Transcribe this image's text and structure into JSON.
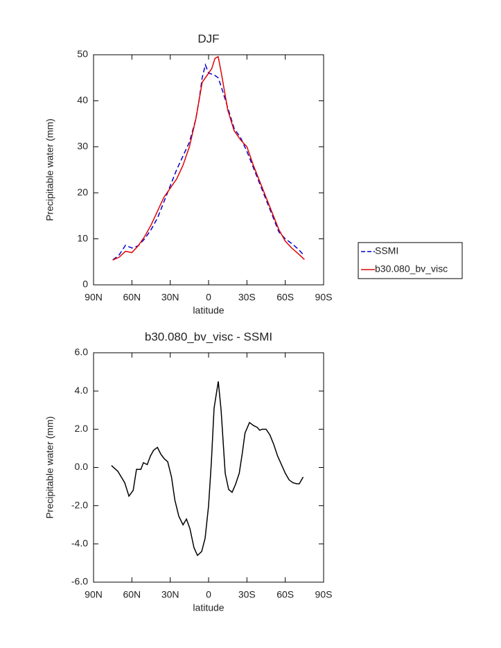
{
  "chart_data": [
    {
      "type": "line",
      "title": "DJF",
      "x_label": "latitude",
      "y_label": "Precipitable water (mm)",
      "x": [
        75,
        70,
        65,
        60,
        55,
        50,
        45,
        40,
        35,
        30,
        25,
        20,
        15,
        10,
        7.5,
        5,
        2.5,
        0,
        -2.5,
        -5,
        -7.5,
        -10,
        -15,
        -20,
        -25,
        -30,
        -35,
        -40,
        -45,
        -50,
        -55,
        -60,
        -65,
        -70,
        -75
      ],
      "series": [
        {
          "name": "SSMI",
          "color": "#0000cc",
          "linestyle": "dashed",
          "values": [
            5.4,
            6.5,
            8.6,
            8,
            8.5,
            10,
            12,
            14.5,
            18,
            21.5,
            25,
            28,
            31,
            36,
            40,
            45,
            47.8,
            46,
            45.8,
            45.5,
            45,
            43,
            38.5,
            34,
            32,
            29,
            25.5,
            22,
            18.5,
            15,
            11.5,
            10,
            9,
            7.8,
            6.3
          ]
        },
        {
          "name": "b30.080_bv_visc",
          "color": "#e00000",
          "linestyle": "solid",
          "values": [
            5.4,
            6,
            7.3,
            7,
            8.5,
            10.5,
            13,
            16,
            19,
            21,
            23,
            26,
            30,
            36,
            40,
            44,
            45,
            46,
            47,
            49.2,
            49.6,
            46,
            38,
            33.5,
            31.5,
            30,
            26,
            22.5,
            19,
            15.5,
            12,
            9.5,
            8,
            6.8,
            5.5
          ]
        }
      ],
      "xlim": [
        90,
        -90
      ],
      "xticks": [
        {
          "value": 90,
          "label": "90N"
        },
        {
          "value": 60,
          "label": "60N"
        },
        {
          "value": 30,
          "label": "30N"
        },
        0,
        {
          "value": -30,
          "label": "30S"
        },
        {
          "value": -60,
          "label": "60S"
        },
        {
          "value": -90,
          "label": "90S"
        }
      ],
      "ylim": [
        0,
        50
      ],
      "yticks": [
        0,
        10,
        20,
        30,
        40,
        50
      ],
      "legend": "right"
    },
    {
      "type": "line",
      "title": "b30.080_bv_visc - SSMI",
      "x_label": "latitude",
      "y_label": "Precipitable water (mm)",
      "x": [
        76,
        71,
        65.6,
        62.3,
        59,
        56.4,
        53,
        51,
        48,
        45.5,
        43,
        40,
        37.4,
        34.6,
        32,
        29,
        26.4,
        23.3,
        20,
        17.3,
        14.6,
        11.4,
        8.7,
        5.4,
        2.7,
        0,
        -2.2,
        -4.3,
        -7.6,
        -9.8,
        -13,
        -15.7,
        -18.4,
        -21,
        -24,
        -26.5,
        -28.5,
        -32,
        -35,
        -38,
        -40,
        -42,
        -45,
        -48,
        -51,
        -54,
        -57,
        -60,
        -63,
        -66,
        -69,
        -71,
        -74
      ],
      "values": [
        0.1,
        -0.2,
        -0.8,
        -1.5,
        -1.2,
        -0.1,
        -0.1,
        0.25,
        0.15,
        0.6,
        0.9,
        1.05,
        0.7,
        0.45,
        0.3,
        -0.5,
        -1.7,
        -2.55,
        -3,
        -2.7,
        -3.2,
        -4.2,
        -4.6,
        -4.4,
        -3.7,
        -2,
        0.3,
        3.1,
        4.5,
        3,
        -0.3,
        -1.15,
        -1.3,
        -0.9,
        -0.3,
        0.8,
        1.8,
        2.35,
        2.2,
        2.1,
        1.95,
        2,
        2,
        1.7,
        1.2,
        0.6,
        0.15,
        -0.3,
        -0.65,
        -0.8,
        -0.85,
        -0.85,
        -0.5
      ],
      "color": "#000000",
      "xlim": [
        90,
        -90
      ],
      "xticks": [
        {
          "value": 90,
          "label": "90N"
        },
        {
          "value": 60,
          "label": "60N"
        },
        {
          "value": 30,
          "label": "30N"
        },
        0,
        {
          "value": -30,
          "label": "30S"
        },
        {
          "value": -60,
          "label": "60S"
        },
        {
          "value": -90,
          "label": "90S"
        }
      ],
      "ylim": [
        -6,
        6
      ],
      "yticks": [
        {
          "value": -6,
          "label": "-6.0"
        },
        {
          "value": -4,
          "label": "-4.0"
        },
        {
          "value": -2,
          "label": "-2.0"
        },
        {
          "value": 0,
          "label": "0.0"
        },
        {
          "value": 2,
          "label": "2.0"
        },
        {
          "value": 4,
          "label": "4.0"
        },
        {
          "value": 6,
          "label": "6.0"
        }
      ]
    }
  ]
}
